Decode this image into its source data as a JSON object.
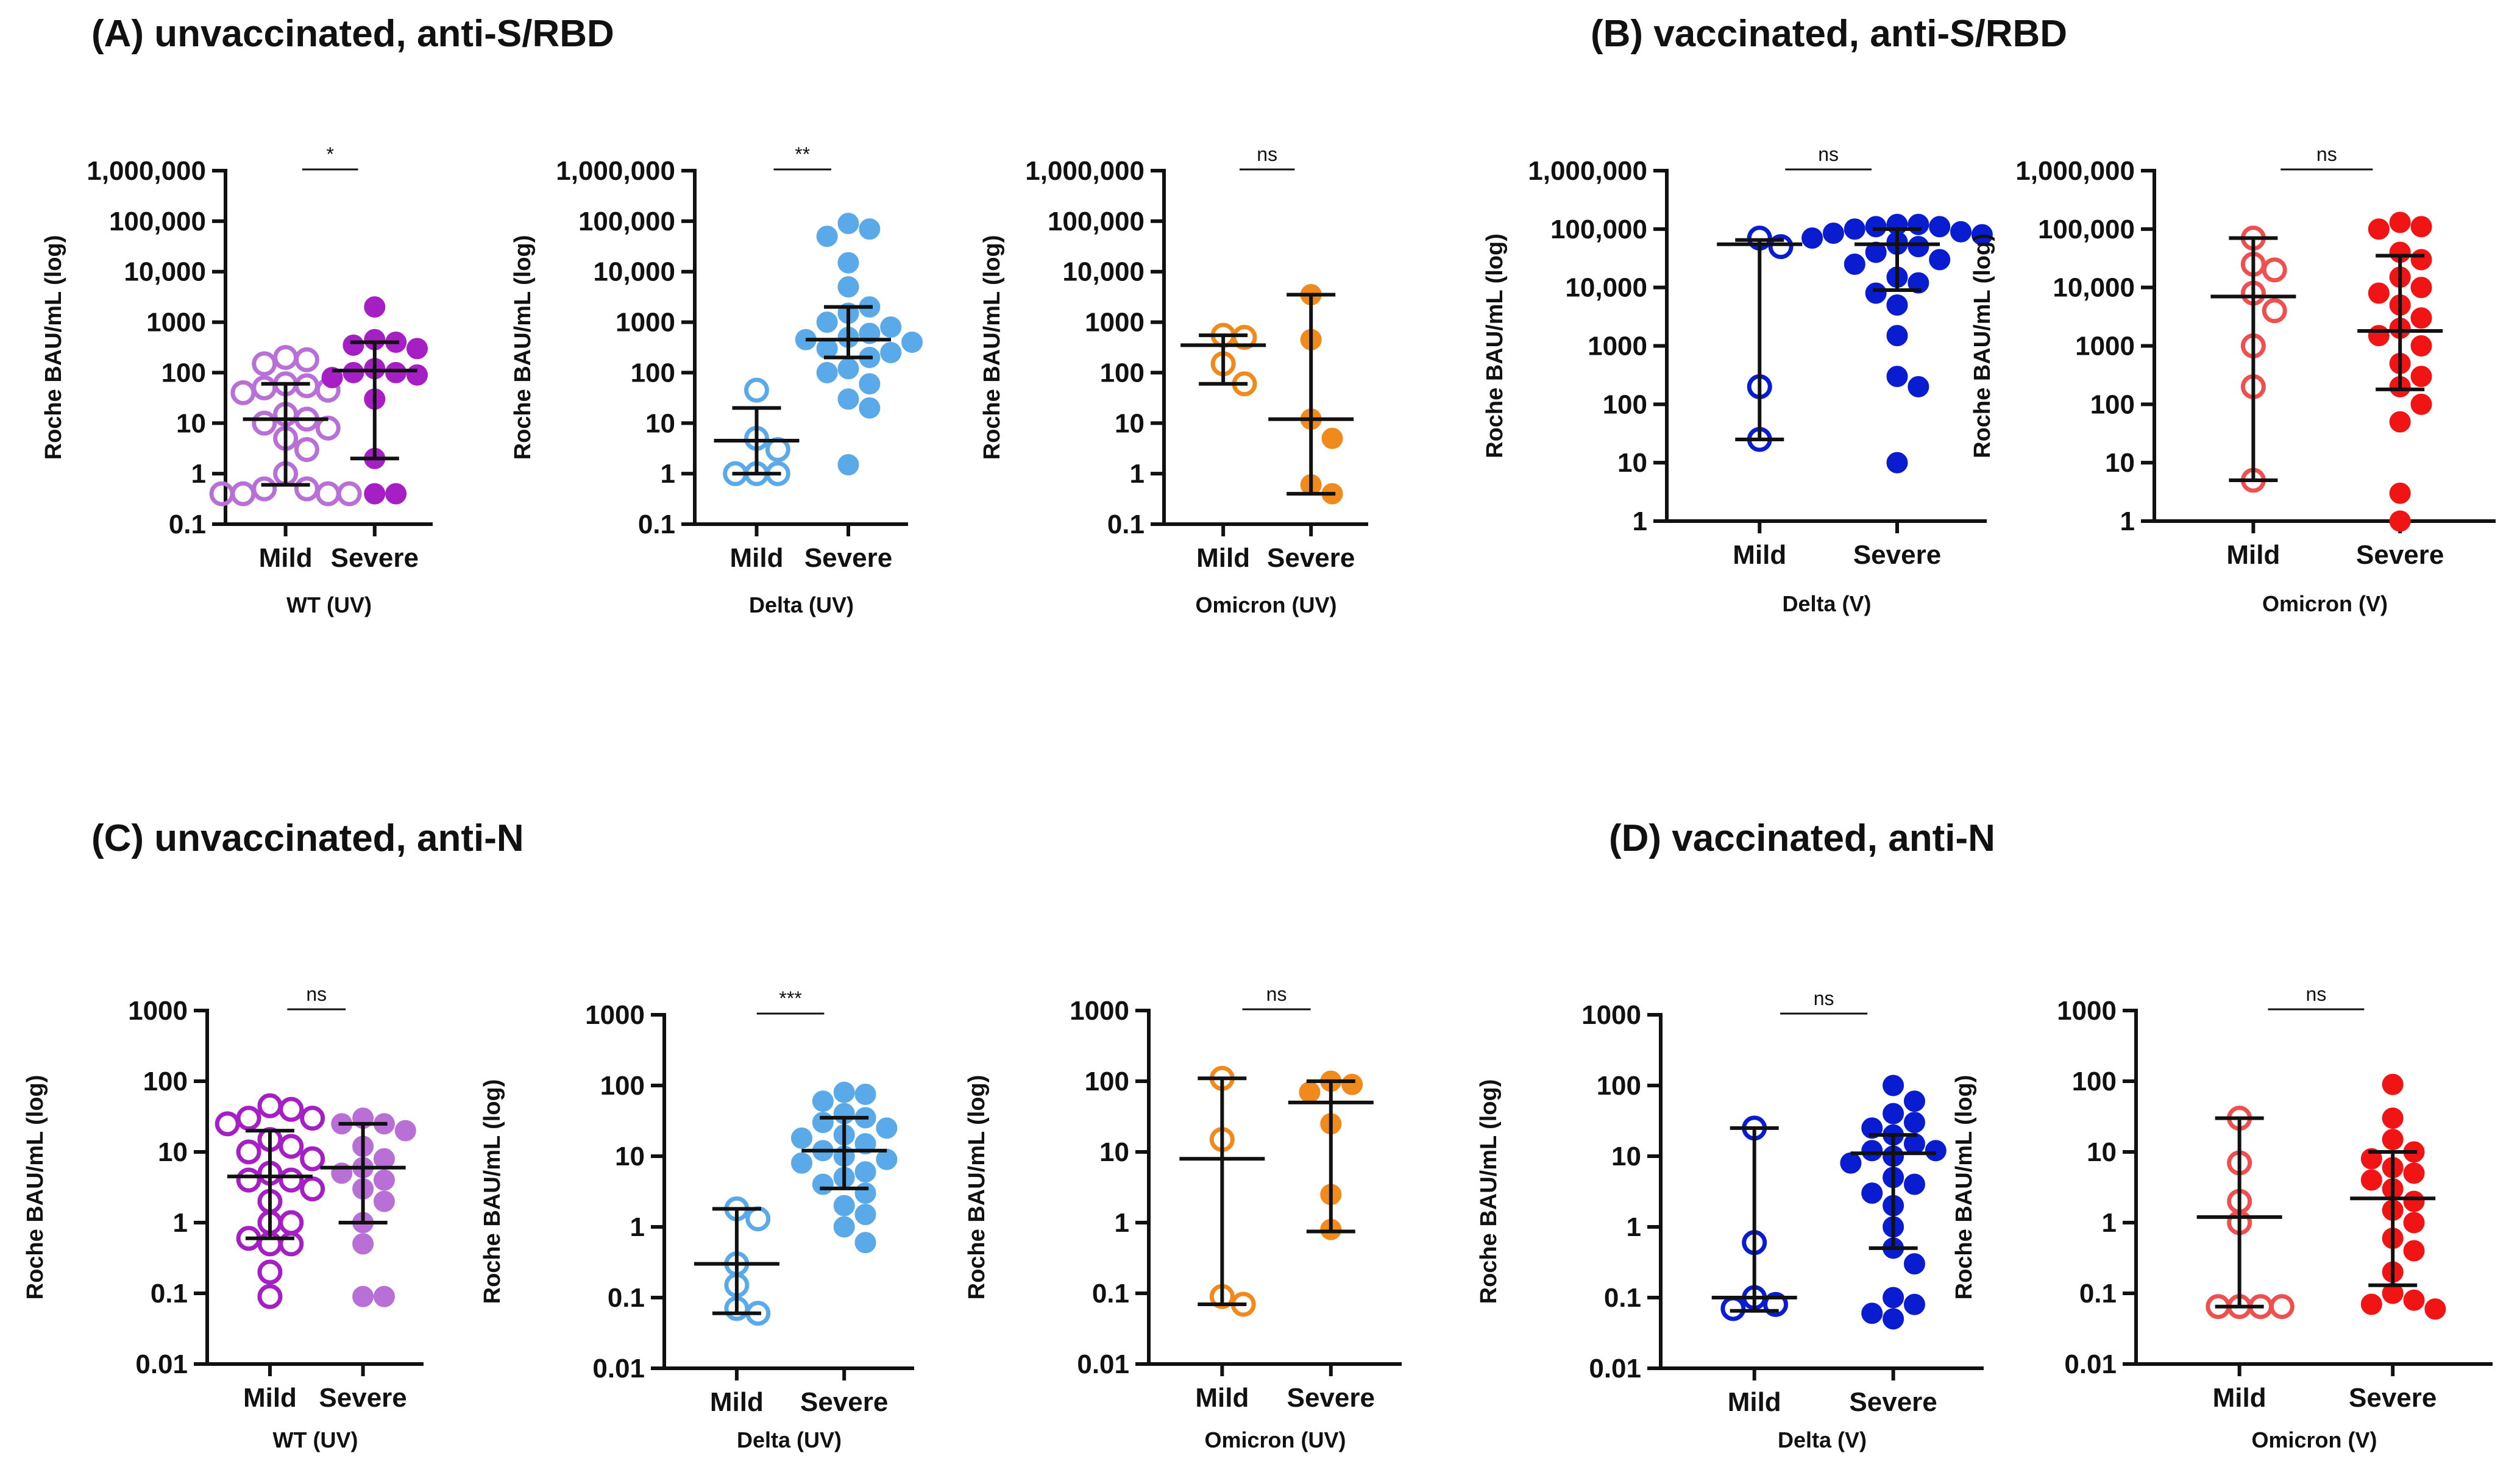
{
  "panels": {
    "A": "(A) unvaccinated, anti-S/RBD",
    "B": "(B) vaccinated, anti-S/RBD",
    "C": "(C) unvaccinated, anti-N",
    "D": "(D) vaccinated, anti-N"
  },
  "chart_data": [
    {
      "id": "A1",
      "panel": "A",
      "type": "scatter",
      "title": "",
      "xlabel": "WT (UV)",
      "ylabel": "Roche BAU/mL (log)",
      "yscale": "log",
      "ylim": [
        0.1,
        1000000
      ],
      "yticks": [
        0.1,
        1,
        10,
        100,
        1000,
        10000,
        100000,
        1000000
      ],
      "ytick_labels": [
        "0.1",
        "1",
        "10",
        "100",
        "1000",
        "10,000",
        "100,000",
        "1,000,000"
      ],
      "categories": [
        "Mild",
        "Severe"
      ],
      "significance": "*",
      "series": [
        {
          "name": "Mild",
          "filled": false,
          "color": "#B86FD6",
          "values": [
            200,
            150,
            180,
            60,
            50,
            45,
            55,
            40,
            15,
            10,
            12,
            8,
            5,
            3,
            1,
            0.5,
            0.4,
            0.4,
            0.4,
            0.4,
            0.5
          ],
          "median": 12,
          "q1": 0.6,
          "q3": 60
        },
        {
          "name": "Severe",
          "filled": true,
          "color": "#A51FC4",
          "values": [
            2000,
            450,
            400,
            350,
            300,
            120,
            100,
            100,
            90,
            80,
            30,
            2,
            0.4,
            0.4
          ],
          "median": 110,
          "q1": 2,
          "q3": 400
        }
      ]
    },
    {
      "id": "A2",
      "panel": "A",
      "type": "scatter",
      "title": "",
      "xlabel": "Delta (UV)",
      "ylabel": "Roche BAU/mL (log)",
      "yscale": "log",
      "ylim": [
        0.1,
        1000000
      ],
      "yticks": [
        0.1,
        1,
        10,
        100,
        1000,
        10000,
        100000,
        1000000
      ],
      "ytick_labels": [
        "0.1",
        "1",
        "10",
        "100",
        "1000",
        "10,000",
        "100,000",
        "1,000,000"
      ],
      "categories": [
        "Mild",
        "Severe"
      ],
      "significance": "**",
      "series": [
        {
          "name": "Mild",
          "filled": false,
          "color": "#5AA9E8",
          "values": [
            45,
            5,
            3,
            1,
            1,
            1
          ],
          "median": 4.5,
          "q1": 1,
          "q3": 20
        },
        {
          "name": "Severe",
          "filled": true,
          "color": "#5AA9E8",
          "values": [
            90000,
            70000,
            50000,
            15000,
            5000,
            2000,
            1500,
            1000,
            800,
            600,
            500,
            450,
            400,
            300,
            250,
            200,
            120,
            100,
            60,
            30,
            20,
            1.5
          ],
          "median": 450,
          "q1": 200,
          "q3": 2000
        }
      ]
    },
    {
      "id": "A3",
      "panel": "A",
      "type": "scatter",
      "title": "",
      "xlabel": "Omicron (UV)",
      "ylabel": "Roche BAU/mL (log)",
      "yscale": "log",
      "ylim": [
        0.1,
        1000000
      ],
      "yticks": [
        0.1,
        1,
        10,
        100,
        1000,
        10000,
        100000,
        1000000
      ],
      "ytick_labels": [
        "0.1",
        "1",
        "10",
        "100",
        "1000",
        "10,000",
        "100,000",
        "1,000,000"
      ],
      "categories": [
        "Mild",
        "Severe"
      ],
      "significance": "ns",
      "series": [
        {
          "name": "Mild",
          "filled": false,
          "color": "#F08A1C",
          "values": [
            550,
            500,
            150,
            60
          ],
          "median": 350,
          "q1": 60,
          "q3": 550
        },
        {
          "name": "Severe",
          "filled": true,
          "color": "#F08A1C",
          "values": [
            3500,
            450,
            12,
            5,
            0.6,
            0.4
          ],
          "median": 12,
          "q1": 0.4,
          "q3": 3500
        }
      ]
    },
    {
      "id": "B1",
      "panel": "B",
      "type": "scatter",
      "title": "",
      "xlabel": "Delta (V)",
      "ylabel": "Roche BAU/mL (log)",
      "yscale": "log",
      "ylim": [
        1,
        1000000
      ],
      "yticks": [
        1,
        10,
        100,
        1000,
        10000,
        100000,
        1000000
      ],
      "ytick_labels": [
        "1",
        "10",
        "100",
        "1000",
        "10,000",
        "100,000",
        "1,000,000"
      ],
      "categories": [
        "Mild",
        "Severe"
      ],
      "significance": "ns",
      "series": [
        {
          "name": "Mild",
          "filled": false,
          "color": "#0A1CCF",
          "values": [
            70000,
            50000,
            200,
            25
          ],
          "median": 55000,
          "q1": 25,
          "q3": 65000
        },
        {
          "name": "Severe",
          "filled": true,
          "color": "#0A1CCF",
          "values": [
            120000,
            120000,
            110000,
            110000,
            100000,
            90000,
            85000,
            80000,
            70000,
            60000,
            55000,
            50000,
            40000,
            30000,
            25000,
            15000,
            12000,
            8000,
            5000,
            1500,
            300,
            200,
            10
          ],
          "median": 55000,
          "q1": 9000,
          "q3": 100000
        }
      ]
    },
    {
      "id": "B2",
      "panel": "B",
      "type": "scatter",
      "title": "",
      "xlabel": "Omicron (V)",
      "ylabel": "Roche BAU/mL (log)",
      "yscale": "log",
      "ylim": [
        1,
        1000000
      ],
      "yticks": [
        1,
        10,
        100,
        1000,
        10000,
        100000,
        1000000
      ],
      "ytick_labels": [
        "1",
        "10",
        "100",
        "1000",
        "10,000",
        "100,000",
        "1,000,000"
      ],
      "categories": [
        "Mild",
        "Severe"
      ],
      "significance": "ns",
      "series": [
        {
          "name": "Mild",
          "filled": false,
          "color": "#EE5050",
          "values": [
            70000,
            25000,
            20000,
            8000,
            4000,
            1000,
            200,
            5
          ],
          "median": 7000,
          "q1": 5,
          "q3": 70000
        },
        {
          "name": "Severe",
          "filled": true,
          "color": "#F01414",
          "values": [
            130000,
            110000,
            100000,
            40000,
            30000,
            15000,
            10000,
            8000,
            5000,
            3000,
            2000,
            1500,
            1000,
            500,
            300,
            200,
            100,
            50,
            3,
            1
          ],
          "median": 1800,
          "q1": 180,
          "q3": 35000
        }
      ]
    },
    {
      "id": "C1",
      "panel": "C",
      "type": "scatter",
      "title": "",
      "xlabel": "WT (UV)",
      "ylabel": "Roche BAU/mL (log)",
      "yscale": "log",
      "ylim": [
        0.01,
        1000
      ],
      "yticks": [
        0.01,
        0.1,
        1,
        10,
        100,
        1000
      ],
      "ytick_labels": [
        "0.01",
        "0.1",
        "1",
        "10",
        "100",
        "1000"
      ],
      "categories": [
        "Mild",
        "Severe"
      ],
      "significance": "ns",
      "series": [
        {
          "name": "Mild",
          "filled": false,
          "color": "#A51FC4",
          "values": [
            45,
            40,
            30,
            30,
            25,
            15,
            12,
            10,
            8,
            5,
            4,
            4,
            3,
            2,
            1,
            1,
            0.6,
            0.5,
            0.5,
            0.2,
            0.09
          ],
          "median": 4.5,
          "q1": 0.6,
          "q3": 20
        },
        {
          "name": "Severe",
          "filled": true,
          "color": "#B86FD6",
          "values": [
            30,
            25,
            25,
            20,
            12,
            8,
            6,
            5,
            4,
            3,
            2,
            1,
            0.5,
            0.09,
            0.09
          ],
          "median": 6,
          "q1": 1,
          "q3": 25
        }
      ]
    },
    {
      "id": "C2",
      "panel": "C",
      "type": "scatter",
      "title": "",
      "xlabel": "Delta (UV)",
      "ylabel": "Roche BAU/mL (log)",
      "yscale": "log",
      "ylim": [
        0.01,
        1000
      ],
      "yticks": [
        0.01,
        0.1,
        1,
        10,
        100,
        1000
      ],
      "ytick_labels": [
        "0.01",
        "0.1",
        "1",
        "10",
        "100",
        "1000"
      ],
      "categories": [
        "Mild",
        "Severe"
      ],
      "significance": "***",
      "series": [
        {
          "name": "Mild",
          "filled": false,
          "color": "#5AA9E8",
          "values": [
            1.8,
            1.3,
            0.3,
            0.15,
            0.07,
            0.06
          ],
          "median": 0.3,
          "q1": 0.06,
          "q3": 1.8
        },
        {
          "name": "Severe",
          "filled": true,
          "color": "#5AA9E8",
          "values": [
            80,
            75,
            60,
            40,
            30,
            25,
            20,
            15,
            12,
            10,
            8,
            6,
            5,
            4,
            3,
            2,
            1.5,
            1,
            0.6,
            35,
            18,
            9
          ],
          "median": 12,
          "q1": 3.5,
          "q3": 35
        }
      ]
    },
    {
      "id": "C3",
      "panel": "C",
      "type": "scatter",
      "title": "",
      "xlabel": "Omicron (UV)",
      "ylabel": "Roche BAU/mL (log)",
      "yscale": "log",
      "ylim": [
        0.01,
        1000
      ],
      "yticks": [
        0.01,
        0.1,
        1,
        10,
        100,
        1000
      ],
      "ytick_labels": [
        "0.01",
        "0.1",
        "1",
        "10",
        "100",
        "1000"
      ],
      "categories": [
        "Mild",
        "Severe"
      ],
      "significance": "ns",
      "series": [
        {
          "name": "Mild",
          "filled": false,
          "color": "#F08A1C",
          "values": [
            110,
            15,
            0.09,
            0.07
          ],
          "median": 8,
          "q1": 0.07,
          "q3": 110
        },
        {
          "name": "Severe",
          "filled": true,
          "color": "#F08A1C",
          "values": [
            100,
            90,
            70,
            25,
            2.5,
            0.8
          ],
          "median": 50,
          "q1": 0.75,
          "q3": 100
        }
      ]
    },
    {
      "id": "D1",
      "panel": "D",
      "type": "scatter",
      "title": "",
      "xlabel": "Delta (V)",
      "ylabel": "Roche BAU/mL (log)",
      "yscale": "log",
      "ylim": [
        0.01,
        1000
      ],
      "yticks": [
        0.01,
        0.1,
        1,
        10,
        100,
        1000
      ],
      "ytick_labels": [
        "0.01",
        "0.1",
        "1",
        "10",
        "100",
        "1000"
      ],
      "categories": [
        "Mild",
        "Severe"
      ],
      "significance": "ns",
      "series": [
        {
          "name": "Mild",
          "filled": false,
          "color": "#0A1CCF",
          "values": [
            25,
            0.6,
            0.1,
            0.08,
            0.07
          ],
          "median": 0.1,
          "q1": 0.065,
          "q3": 25
        },
        {
          "name": "Severe",
          "filled": true,
          "color": "#0A1CCF",
          "values": [
            100,
            60,
            40,
            30,
            25,
            20,
            15,
            12,
            12,
            10,
            8,
            5,
            4,
            3,
            2,
            1,
            0.5,
            0.3,
            0.1,
            0.08,
            0.06,
            0.05
          ],
          "median": 11,
          "q1": 0.5,
          "q3": 20
        }
      ]
    },
    {
      "id": "D2",
      "panel": "D",
      "type": "scatter",
      "title": "",
      "xlabel": "Omicron (V)",
      "ylabel": "Roche BAU/mL (log)",
      "yscale": "log",
      "ylim": [
        0.01,
        1000
      ],
      "yticks": [
        0.01,
        0.1,
        1,
        10,
        100,
        1000
      ],
      "ytick_labels": [
        "0.01",
        "0.1",
        "1",
        "10",
        "100",
        "1000"
      ],
      "categories": [
        "Mild",
        "Severe"
      ],
      "significance": "ns",
      "series": [
        {
          "name": "Mild",
          "filled": false,
          "color": "#EE5050",
          "values": [
            30,
            7,
            2,
            1,
            0.065,
            0.065,
            0.065,
            0.065
          ],
          "median": 1.2,
          "q1": 0.065,
          "q3": 30
        },
        {
          "name": "Severe",
          "filled": true,
          "color": "#F01414",
          "values": [
            90,
            30,
            15,
            10,
            8,
            6,
            5,
            4,
            3,
            2,
            1.5,
            1,
            0.6,
            0.4,
            0.2,
            0.1,
            0.08,
            0.07,
            0.06
          ],
          "median": 2.2,
          "q1": 0.13,
          "q3": 10
        }
      ]
    }
  ]
}
